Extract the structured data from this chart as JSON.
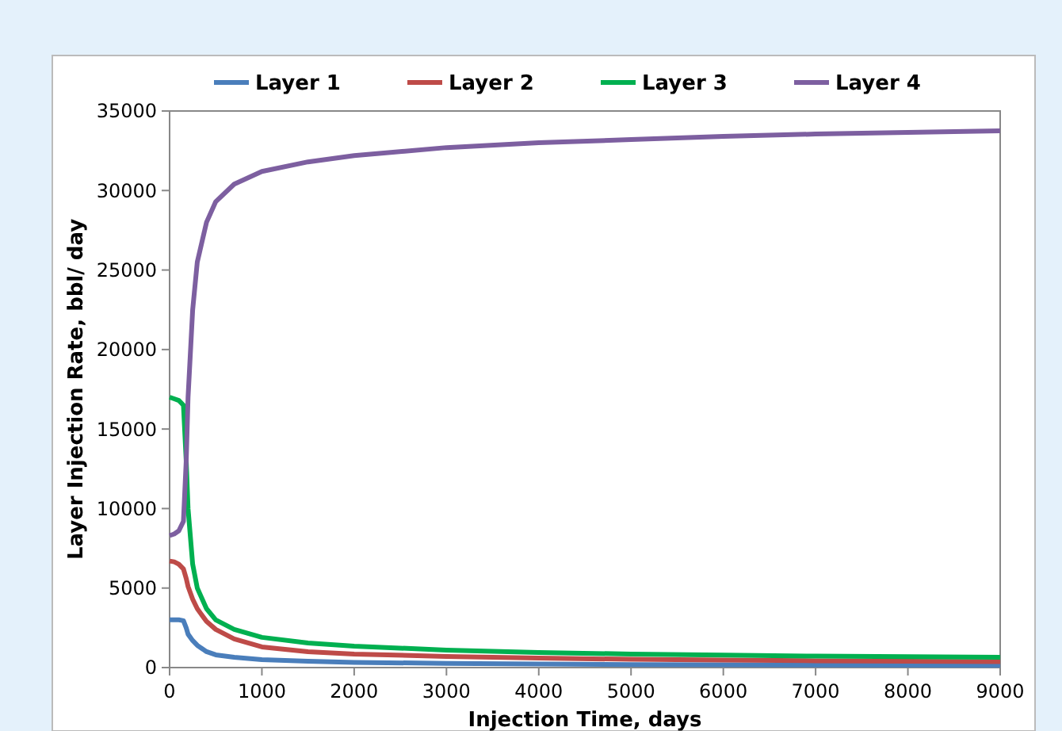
{
  "chart_data": {
    "type": "line",
    "xlabel": "Injection Time, days",
    "ylabel": "Layer Injection Rate, bbl/ day",
    "x": [
      0,
      50,
      100,
      150,
      180,
      200,
      250,
      300,
      400,
      500,
      700,
      1000,
      1500,
      2000,
      3000,
      4000,
      5000,
      6000,
      7000,
      8000,
      9000
    ],
    "series": [
      {
        "name": "Layer 1",
        "color": "#4a7ebb",
        "values": [
          3000,
          3000,
          3000,
          2950,
          2500,
          2100,
          1700,
          1400,
          1000,
          800,
          650,
          500,
          400,
          330,
          260,
          220,
          190,
          170,
          160,
          150,
          140
        ]
      },
      {
        "name": "Layer 2",
        "color": "#be4b48",
        "values": [
          6700,
          6650,
          6500,
          6200,
          5600,
          5100,
          4300,
          3700,
          2900,
          2400,
          1800,
          1300,
          1000,
          850,
          700,
          600,
          520,
          470,
          430,
          400,
          380
        ]
      },
      {
        "name": "Layer 3",
        "color": "#00b050",
        "values": [
          17000,
          16900,
          16800,
          16500,
          13000,
          10000,
          6500,
          5000,
          3700,
          3000,
          2400,
          1900,
          1550,
          1350,
          1100,
          950,
          850,
          780,
          720,
          680,
          650
        ]
      },
      {
        "name": "Layer 4",
        "color": "#7d5fa0",
        "values": [
          8300,
          8400,
          8600,
          9200,
          13000,
          17000,
          22500,
          25500,
          28000,
          29300,
          30400,
          31200,
          31800,
          32200,
          32700,
          33000,
          33200,
          33400,
          33550,
          33650,
          33750
        ]
      }
    ],
    "xlim": [
      0,
      9000
    ],
    "xticks": [
      0,
      1000,
      2000,
      3000,
      4000,
      5000,
      6000,
      7000,
      8000,
      9000
    ],
    "ylim": [
      0,
      35000
    ],
    "yticks": [
      0,
      5000,
      10000,
      15000,
      20000,
      25000,
      30000,
      35000
    ],
    "grid": false,
    "legend": "top",
    "marker": "none",
    "line_style": "solid"
  }
}
